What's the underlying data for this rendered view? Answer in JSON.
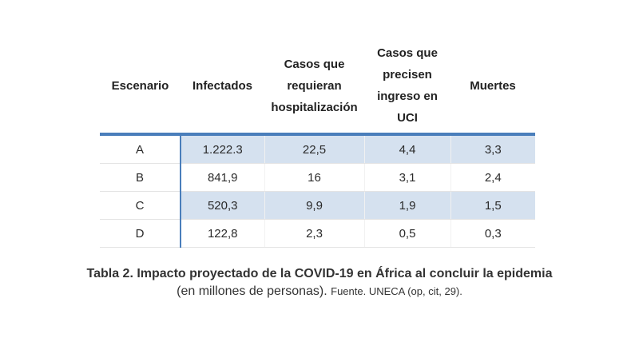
{
  "table": {
    "headers": [
      "Escenario",
      "Infectados",
      "Casos que requieran hospitalización",
      "Casos que precisen ingreso en UCI",
      "Muertes"
    ],
    "rows": [
      [
        "A",
        "1.222.3",
        "22,5",
        "4,4",
        "3,3"
      ],
      [
        "B",
        "841,9",
        "16",
        "3,1",
        "2,4"
      ],
      [
        "C",
        "520,3",
        "9,9",
        "1,9",
        "1,5"
      ],
      [
        "D",
        "122,8",
        "2,3",
        "0,5",
        "0,3"
      ]
    ]
  },
  "caption": {
    "title": "Tabla 2. Impacto proyectado de la COVID-19 en África al concluir la epidemia",
    "subtitle": "(en millones de personas).",
    "source": "Fuente. UNECA (op, cit, 29)."
  },
  "colors": {
    "accent": "#4a7ebb",
    "shaded_row": "#d5e1ef"
  }
}
